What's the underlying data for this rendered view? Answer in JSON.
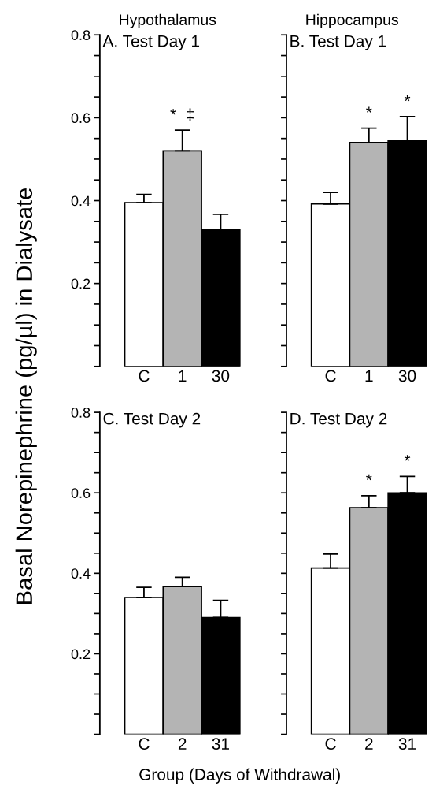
{
  "chart_data": [
    {
      "type": "bar",
      "subtitle": "Hypothalamus",
      "title": "A. Test Day 1",
      "ylabel": "Basal Norepinephrine (pg/µl) in Dialysate",
      "categories": [
        "C",
        "1",
        "30"
      ],
      "values": [
        0.395,
        0.52,
        0.33
      ],
      "colors": [
        "#ffffff",
        "#b4b4b4",
        "#000000"
      ],
      "errors": [
        [
          0.395,
          0.415
        ],
        [
          0.52,
          0.57
        ],
        [
          0.33,
          0.367
        ]
      ],
      "annotations": [
        {
          "text": "*  ‡",
          "x": "1",
          "y": 0.57
        }
      ],
      "ylim": [
        0,
        0.8
      ],
      "yticks": [
        0.2,
        0.4,
        0.6,
        0.8
      ]
    },
    {
      "type": "bar",
      "subtitle": "Hippocampus",
      "title": "B. Test Day 1",
      "categories": [
        "C",
        "1",
        "30"
      ],
      "values": [
        0.392,
        0.54,
        0.545
      ],
      "colors": [
        "#ffffff",
        "#b4b4b4",
        "#000000"
      ],
      "errors": [
        [
          0.392,
          0.42
        ],
        [
          0.54,
          0.575
        ],
        [
          0.545,
          0.603
        ]
      ],
      "annotations": [
        {
          "text": "*",
          "x": "1",
          "y": 0.575
        },
        {
          "text": "*",
          "x": "30",
          "y": 0.603
        }
      ],
      "tick_labels": "x",
      "ylim": [
        0,
        0.8
      ],
      "yticks": [
        0.2,
        0.4,
        0.6,
        0.8
      ]
    },
    {
      "type": "bar",
      "title": "C. Test Day 2",
      "xlabel": "Group (Days of Withdrawal)",
      "categories": [
        "C",
        "2",
        "31"
      ],
      "values": [
        0.34,
        0.367,
        0.29
      ],
      "colors": [
        "#ffffff",
        "#b4b4b4",
        "#000000"
      ],
      "errors": [
        [
          0.34,
          0.365
        ],
        [
          0.367,
          0.39
        ],
        [
          0.29,
          0.333
        ]
      ],
      "ylim": [
        0,
        0.8
      ],
      "yticks": [
        0.2,
        0.4,
        0.6,
        0.8
      ]
    },
    {
      "type": "bar",
      "title": "D. Test Day 2",
      "categories": [
        "C",
        "2",
        "31"
      ],
      "values": [
        0.413,
        0.563,
        0.6
      ],
      "colors": [
        "#ffffff",
        "#b4b4b4",
        "#000000"
      ],
      "errors": [
        [
          0.413,
          0.448
        ],
        [
          0.563,
          0.593
        ],
        [
          0.6,
          0.641
        ]
      ],
      "annotations": [
        {
          "text": "*",
          "x": "2",
          "y": 0.593
        },
        {
          "text": "*",
          "x": "31",
          "y": 0.641
        }
      ],
      "tick_labels": "x",
      "ylim": [
        0,
        0.8
      ],
      "yticks": [
        0.2,
        0.4,
        0.6,
        0.8
      ]
    }
  ]
}
